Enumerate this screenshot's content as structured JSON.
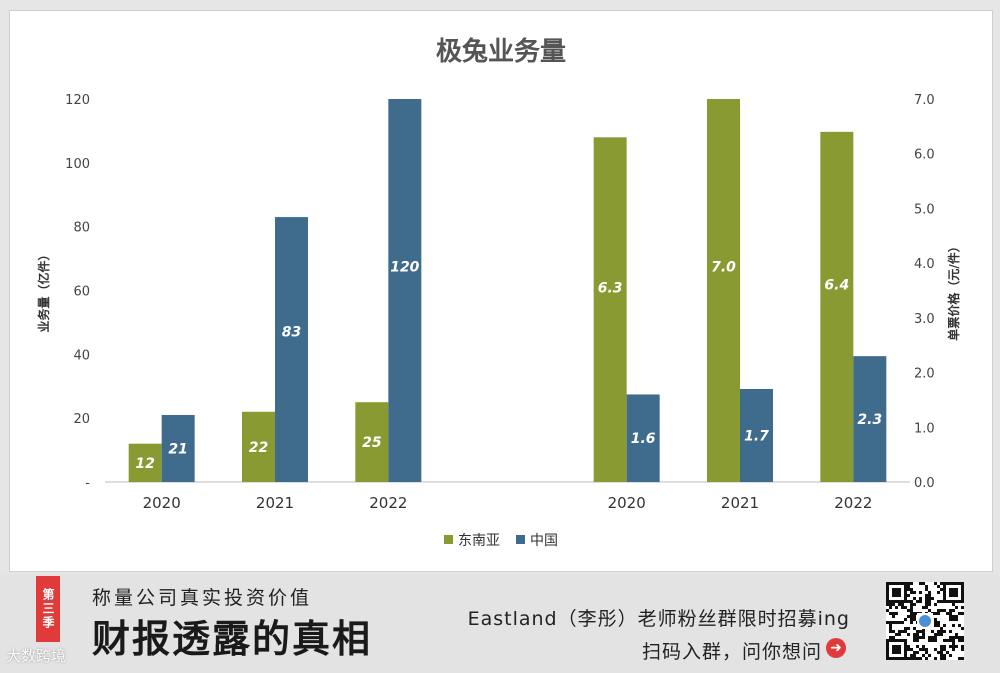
{
  "chart_data": {
    "type": "bar",
    "title": "极兔业务量",
    "legend": {
      "position": "bottom-center"
    },
    "colors": {
      "东南亚": "#8a9a32",
      "中国": "#3f6b8c"
    },
    "left_axis": {
      "label": "业务量（亿件）",
      "ylim": [
        0,
        120
      ],
      "ticks": [
        "-",
        "20",
        "40",
        "60",
        "80",
        "100",
        "120"
      ]
    },
    "right_axis": {
      "label": "单票价格（元/件）",
      "ylim": [
        0,
        7.0
      ],
      "ticks": [
        "0.0",
        "1.0",
        "2.0",
        "3.0",
        "4.0",
        "5.0",
        "6.0",
        "7.0"
      ]
    },
    "panels": [
      {
        "axis": "left",
        "categories": [
          "2020",
          "2021",
          "2022"
        ],
        "series": [
          {
            "name": "东南亚",
            "values": [
              12,
              22,
              25
            ],
            "labels": [
              "12",
              "22",
              "25"
            ]
          },
          {
            "name": "中国",
            "values": [
              21,
              83,
              120
            ],
            "labels": [
              "21",
              "83",
              "120"
            ]
          }
        ]
      },
      {
        "axis": "right",
        "categories": [
          "2020",
          "2021",
          "2022"
        ],
        "series": [
          {
            "name": "东南亚",
            "values": [
              6.3,
              7.0,
              6.4
            ],
            "labels": [
              "6.3",
              "7.0",
              "6.4"
            ]
          },
          {
            "name": "中国",
            "values": [
              1.6,
              1.7,
              2.3
            ],
            "labels": [
              "1.6",
              "1.7",
              "2.3"
            ]
          }
        ]
      }
    ]
  },
  "banner": {
    "season": "第三季",
    "sub_slogan": "称量公司真实投资价值",
    "main_slogan": "财报透露的真相",
    "promo_line1": "Eastland（李彤）老师粉丝群限时招募ing",
    "promo_line2": "扫码入群，问你想问",
    "arrow_icon": "➜",
    "watermark": "大数跨境",
    "qr_icon": "qr-code-icon"
  }
}
